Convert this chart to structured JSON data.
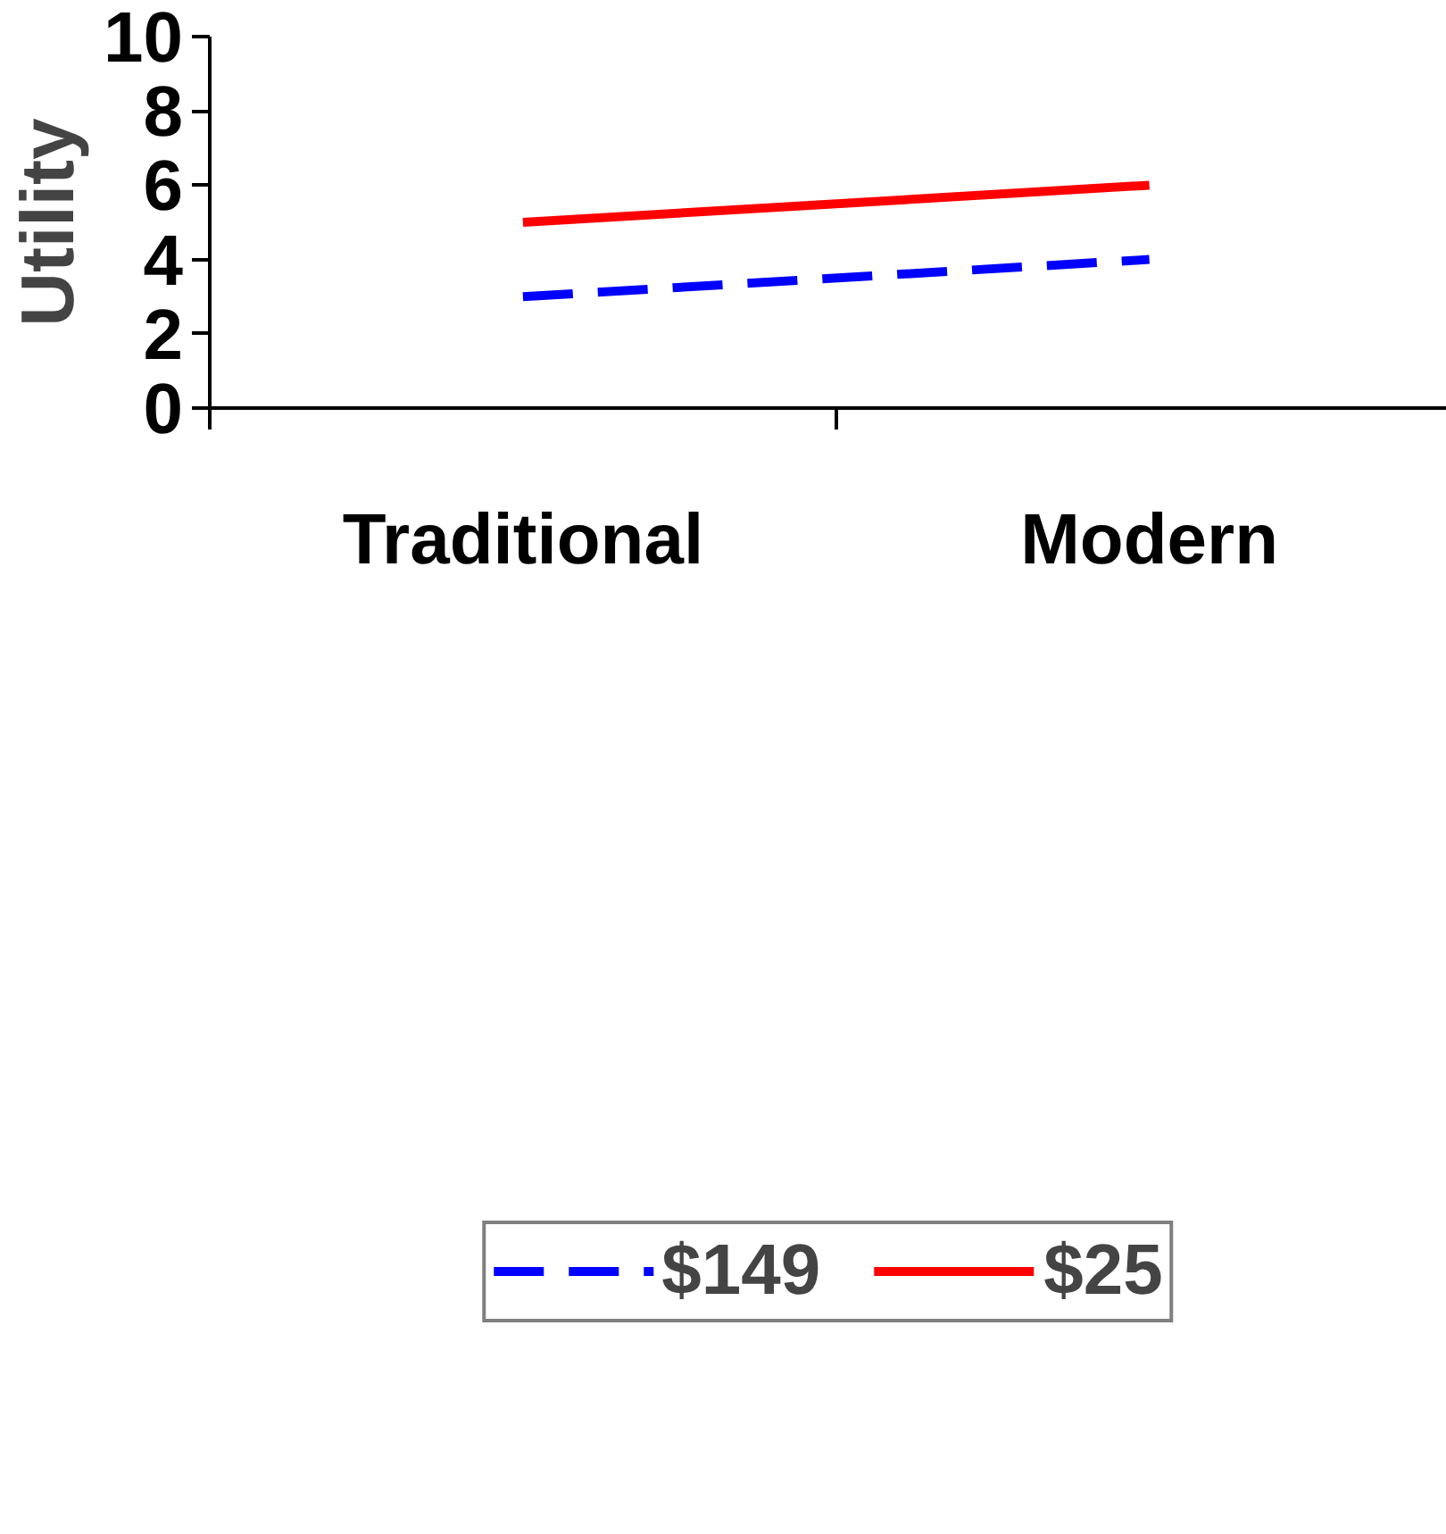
{
  "chart_data": {
    "type": "line",
    "ylabel": "Utility",
    "categories": [
      "Traditional",
      "Modern"
    ],
    "series": [
      {
        "name": "$149",
        "color": "#0000ff",
        "values": [
          3,
          4
        ],
        "line_style": "dashed"
      },
      {
        "name": "$25",
        "color": "#ff0000",
        "values": [
          5,
          6
        ],
        "line_style": "solid"
      }
    ],
    "ylim": [
      0,
      10
    ],
    "yticks": [
      0,
      2,
      4,
      6,
      8,
      10
    ],
    "legend": "bottom",
    "grid": false
  }
}
